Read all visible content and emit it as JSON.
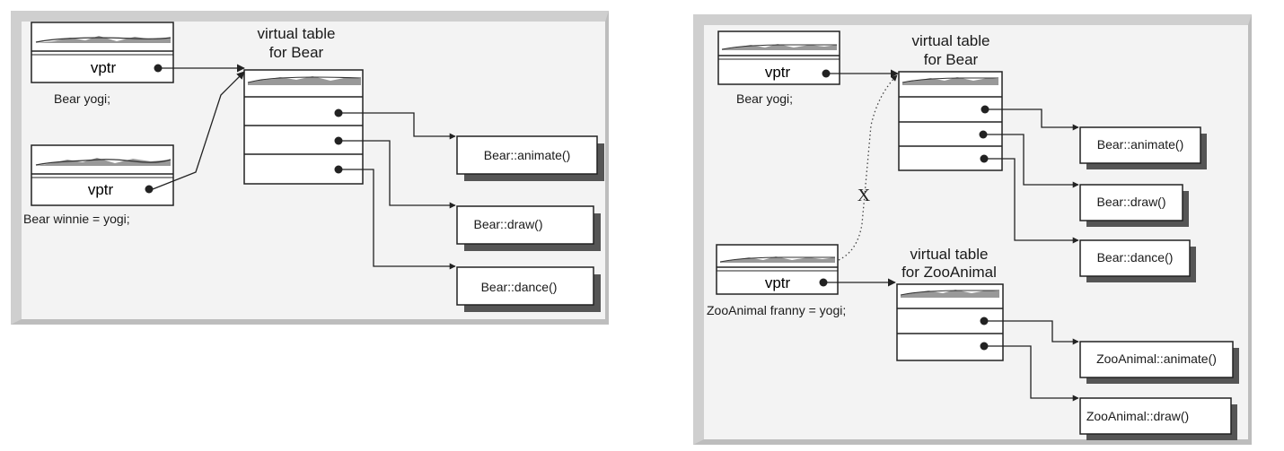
{
  "left": {
    "objects": [
      {
        "vptr_label": "vptr",
        "caption": "Bear yogi;"
      },
      {
        "vptr_label": "vptr",
        "caption": "Bear winnie = yogi;"
      }
    ],
    "vtable_title": [
      "virtual table",
      "for Bear"
    ],
    "functions": [
      "Bear::animate()",
      "Bear::draw()",
      "Bear::dance()"
    ]
  },
  "right": {
    "objects": [
      {
        "vptr_label": "vptr",
        "caption": "Bear yogi;"
      },
      {
        "vptr_label": "vptr",
        "caption": "ZooAnimal franny = yogi;"
      }
    ],
    "bear_vtable_title": [
      "virtual table",
      "for Bear"
    ],
    "bear_functions": [
      "Bear::animate()",
      "Bear::draw()",
      "Bear::dance()"
    ],
    "zoo_vtable_title": [
      "virtual table",
      "for ZooAnimal"
    ],
    "zoo_functions": [
      "ZooAnimal::animate()",
      "ZooAnimal::draw()"
    ],
    "invalid_mark": "X"
  }
}
